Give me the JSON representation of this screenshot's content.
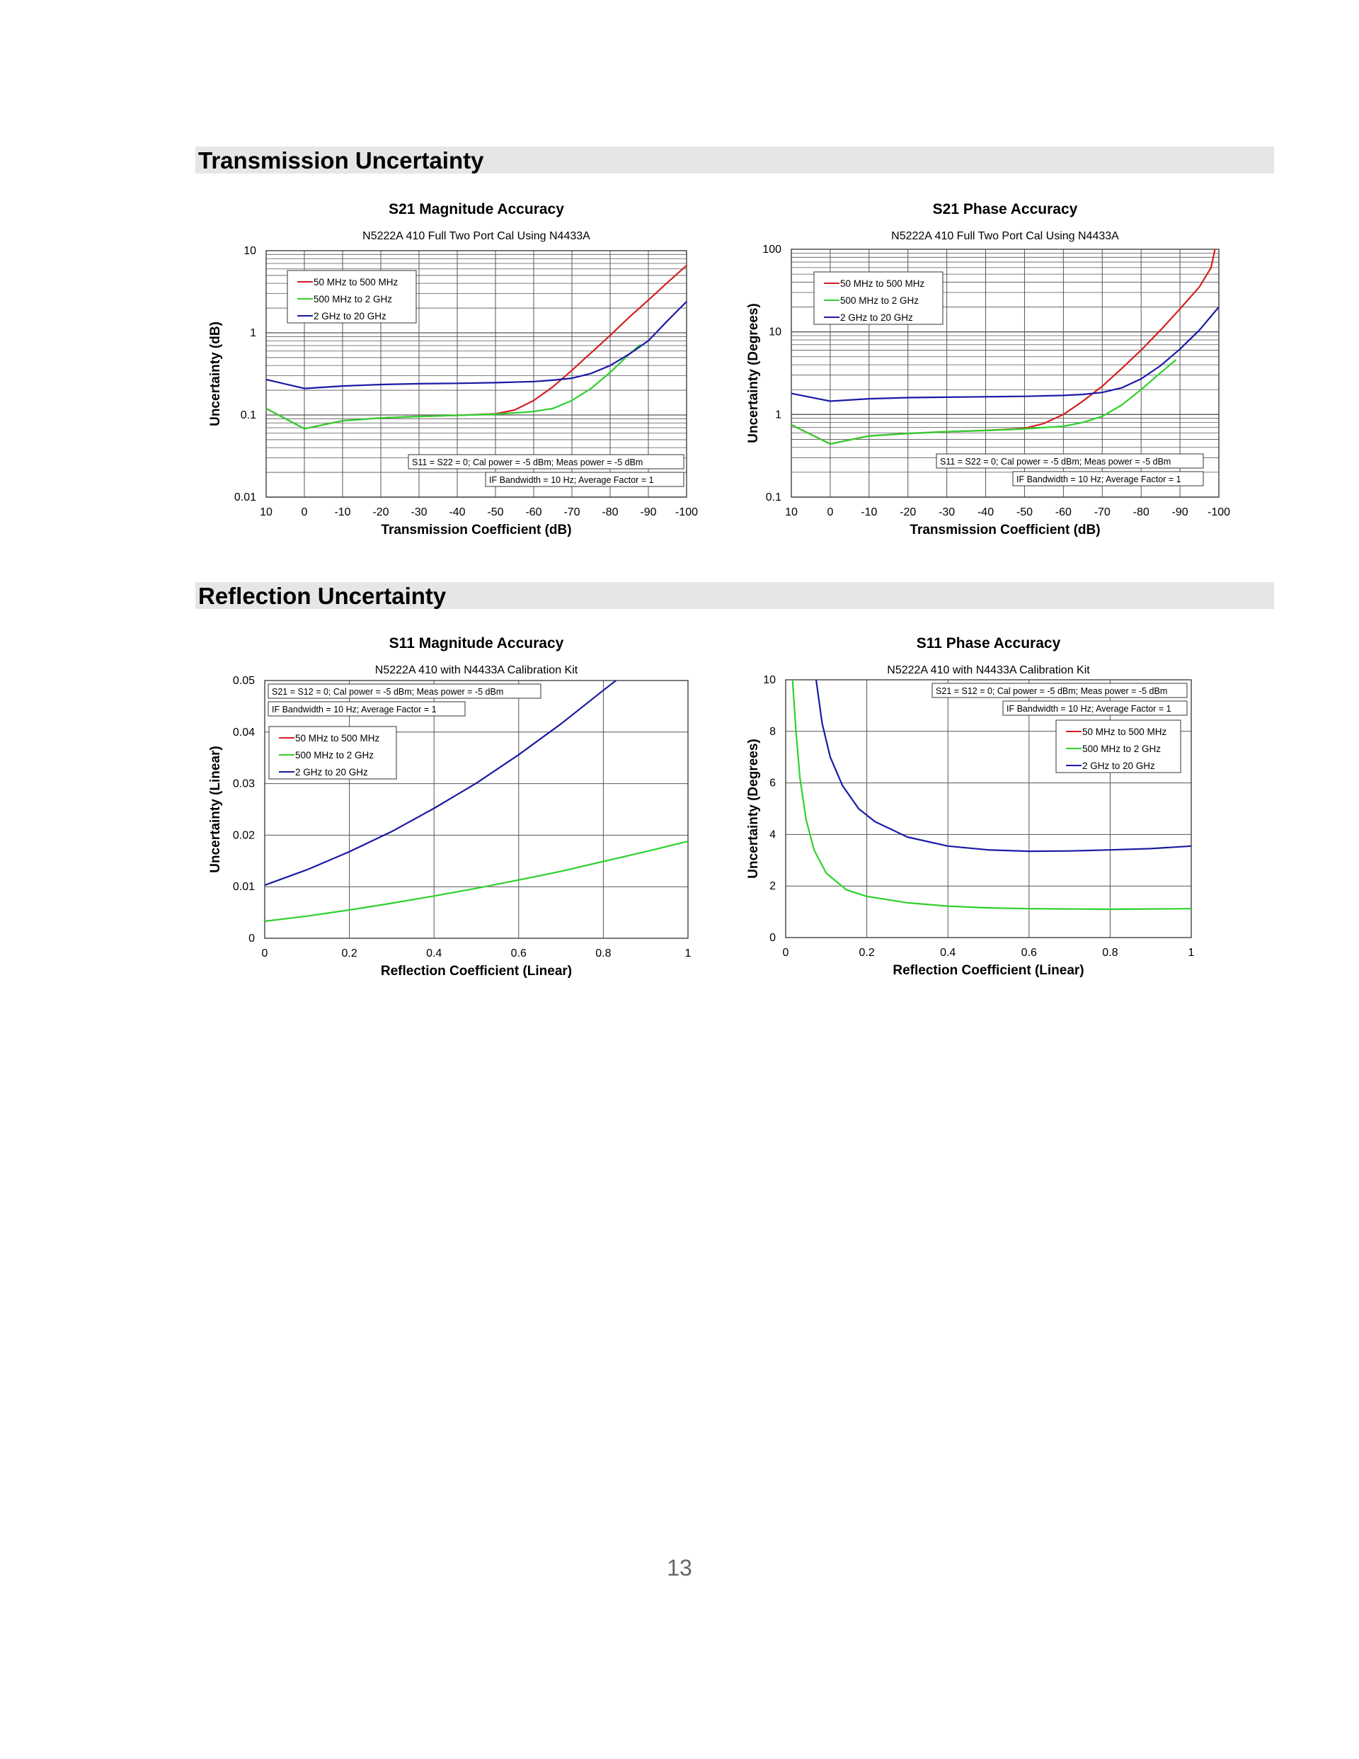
{
  "sections": {
    "transmission_title": "Transmission Uncertainty",
    "reflection_title": "Reflection Uncertainty"
  },
  "page_number": "13",
  "colors": {
    "red": "#d42020",
    "green": "#2ed12e",
    "blue": "#1a1aa6",
    "section_bar": "#e6e6e6"
  },
  "chart_data": [
    {
      "id": "s21-mag",
      "type": "line",
      "title": "S21 Magnitude Accuracy",
      "subtitle": "N5222A 410 Full Two Port Cal Using N4433A",
      "xlabel": "Transmission Coefficient (dB)",
      "ylabel": "Uncertainty (dB)",
      "xlim": [
        10,
        -100
      ],
      "ylim": [
        0.01,
        10
      ],
      "yscale": "log",
      "xticks": [
        10,
        0,
        -10,
        -20,
        -30,
        -40,
        -50,
        -60,
        -70,
        -80,
        -90,
        -100
      ],
      "yticks": [
        0.01,
        0.1,
        1,
        10
      ],
      "ytick_labels": [
        "0.01",
        "0.1",
        "1",
        "10"
      ],
      "grid": true,
      "legend": "top-left",
      "notes": [
        "S11 = S22 = 0; Cal power = -5 dBm; Meas power = -5 dBm",
        "IF Bandwidth = 10 Hz; Average Factor = 1"
      ],
      "series": [
        {
          "name": "50 MHz to 500 MHz",
          "color": "#d42020",
          "x": [
            10,
            0,
            -10,
            -20,
            -30,
            -40,
            -50,
            -55,
            -60,
            -65,
            -70,
            -75,
            -80,
            -85,
            -90,
            -95,
            -100
          ],
          "y": [
            0.12,
            0.068,
            0.085,
            0.092,
            0.096,
            0.099,
            0.103,
            0.115,
            0.15,
            0.22,
            0.35,
            0.57,
            0.93,
            1.55,
            2.5,
            4.1,
            6.6
          ]
        },
        {
          "name": "500 MHz to 2 GHz",
          "color": "#2ed12e",
          "x": [
            10,
            0,
            -10,
            -20,
            -30,
            -40,
            -50,
            -60,
            -65,
            -70,
            -75,
            -80,
            -85,
            -88
          ],
          "y": [
            0.12,
            0.068,
            0.085,
            0.092,
            0.096,
            0.099,
            0.102,
            0.11,
            0.12,
            0.15,
            0.21,
            0.33,
            0.55,
            0.72
          ]
        },
        {
          "name": "2 GHz to 20 GHz",
          "color": "#1a1aa6",
          "x": [
            10,
            0,
            -10,
            -20,
            -30,
            -40,
            -50,
            -60,
            -65,
            -70,
            -75,
            -80,
            -85,
            -90,
            -95,
            -100
          ],
          "y": [
            0.27,
            0.21,
            0.225,
            0.235,
            0.24,
            0.243,
            0.247,
            0.255,
            0.265,
            0.28,
            0.32,
            0.4,
            0.55,
            0.8,
            1.4,
            2.4
          ]
        }
      ]
    },
    {
      "id": "s21-phase",
      "type": "line",
      "title": "S21 Phase Accuracy",
      "subtitle": "N5222A 410 Full Two Port Cal Using N4433A",
      "xlabel": "Transmission Coefficient (dB)",
      "ylabel": "Uncertainty (Degrees)",
      "xlim": [
        10,
        -100
      ],
      "ylim": [
        0.1,
        100
      ],
      "yscale": "log",
      "xticks": [
        10,
        0,
        -10,
        -20,
        -30,
        -40,
        -50,
        -60,
        -70,
        -80,
        -90,
        -100
      ],
      "yticks": [
        0.1,
        1,
        10,
        100
      ],
      "ytick_labels": [
        "0.1",
        "1",
        "10",
        "100"
      ],
      "grid": true,
      "legend": "top-left",
      "notes": [
        "S11 = S22 = 0; Cal power = -5 dBm; Meas power = -5 dBm",
        "IF Bandwidth = 10 Hz; Average Factor = 1"
      ],
      "series": [
        {
          "name": "50 MHz to 500 MHz",
          "color": "#d42020",
          "x": [
            10,
            0,
            -10,
            -20,
            -30,
            -40,
            -50,
            -55,
            -60,
            -65,
            -70,
            -75,
            -80,
            -85,
            -90,
            -95,
            -98,
            -99
          ],
          "y": [
            0.75,
            0.44,
            0.55,
            0.59,
            0.62,
            0.64,
            0.68,
            0.78,
            1.0,
            1.45,
            2.2,
            3.6,
            6.0,
            10.5,
            19,
            35,
            60,
            100
          ]
        },
        {
          "name": "500 MHz to 2 GHz",
          "color": "#2ed12e",
          "x": [
            10,
            0,
            -10,
            -20,
            -30,
            -40,
            -50,
            -60,
            -65,
            -70,
            -75,
            -80,
            -85,
            -89
          ],
          "y": [
            0.75,
            0.44,
            0.55,
            0.59,
            0.62,
            0.64,
            0.67,
            0.72,
            0.8,
            0.95,
            1.3,
            2.0,
            3.2,
            4.6
          ]
        },
        {
          "name": "2 GHz to 20 GHz",
          "color": "#1a1aa6",
          "x": [
            10,
            0,
            -10,
            -20,
            -30,
            -40,
            -50,
            -60,
            -65,
            -70,
            -75,
            -80,
            -85,
            -90,
            -95,
            -100
          ],
          "y": [
            1.8,
            1.45,
            1.55,
            1.6,
            1.62,
            1.64,
            1.66,
            1.7,
            1.75,
            1.85,
            2.1,
            2.7,
            3.9,
            6.2,
            10.5,
            20
          ]
        }
      ]
    },
    {
      "id": "s11-mag",
      "type": "line",
      "title": "S11 Magnitude Accuracy",
      "subtitle": "N5222A 410 with N4433A Calibration Kit",
      "xlabel": "Reflection Coefficient (Linear)",
      "ylabel": "Uncertainty (Linear)",
      "xlim": [
        0,
        1
      ],
      "ylim": [
        0,
        0.05
      ],
      "yscale": "linear",
      "xticks": [
        0,
        0.2,
        0.4,
        0.6,
        0.8,
        1
      ],
      "xtick_labels": [
        "0",
        "0.2",
        "0.4",
        "0.6",
        "0.8",
        "1"
      ],
      "yticks": [
        0,
        0.01,
        0.02,
        0.03,
        0.04,
        0.05
      ],
      "ytick_labels": [
        "0",
        "0.01",
        "0.02",
        "0.03",
        "0.04",
        "0.05"
      ],
      "grid": true,
      "legend": "top-left",
      "notes": [
        "S21 = S12 = 0; Cal power = -5 dBm; Meas power = -5 dBm",
        "IF Bandwidth = 10 Hz; Average Factor = 1"
      ],
      "series": [
        {
          "name": "50 MHz to 500 MHz",
          "color": "#d42020",
          "x": [],
          "y": []
        },
        {
          "name": "500 MHz to 2 GHz",
          "color": "#2ed12e",
          "x": [
            0,
            0.1,
            0.2,
            0.3,
            0.4,
            0.5,
            0.6,
            0.7,
            0.8,
            0.9,
            1.0
          ],
          "y": [
            0.0033,
            0.0043,
            0.0055,
            0.0068,
            0.0082,
            0.0097,
            0.0113,
            0.013,
            0.0149,
            0.0168,
            0.0188
          ]
        },
        {
          "name": "2 GHz to 20 GHz",
          "color": "#1a1aa6",
          "x": [
            0,
            0.1,
            0.2,
            0.3,
            0.4,
            0.5,
            0.6,
            0.7,
            0.8,
            0.83
          ],
          "y": [
            0.0103,
            0.0133,
            0.0168,
            0.0207,
            0.0252,
            0.0301,
            0.0356,
            0.0416,
            0.0481,
            0.05
          ]
        }
      ]
    },
    {
      "id": "s11-phase",
      "type": "line",
      "title": "S11 Phase Accuracy",
      "subtitle": "N5222A 410 with N4433A Calibration Kit",
      "xlabel": "Reflection Coefficient (Linear)",
      "ylabel": "Uncertainty (Degrees)",
      "xlim": [
        0,
        1
      ],
      "ylim": [
        0,
        10
      ],
      "yscale": "linear",
      "xticks": [
        0,
        0.2,
        0.4,
        0.6,
        0.8,
        1
      ],
      "xtick_labels": [
        "0",
        "0.2",
        "0.4",
        "0.6",
        "0.8",
        "1"
      ],
      "yticks": [
        0,
        2,
        4,
        6,
        8,
        10
      ],
      "ytick_labels": [
        "0",
        "2",
        "4",
        "6",
        "8",
        "10"
      ],
      "grid": true,
      "legend": "top-right",
      "notes": [
        "S21 = S12 = 0; Cal power = -5 dBm; Meas power = -5 dBm",
        "IF Bandwidth = 10 Hz; Average Factor = 1"
      ],
      "series": [
        {
          "name": "50 MHz to 500 MHz",
          "color": "#d42020",
          "x": [],
          "y": []
        },
        {
          "name": "500 MHz to 2 GHz",
          "color": "#2ed12e",
          "x": [
            0.017,
            0.025,
            0.035,
            0.05,
            0.07,
            0.1,
            0.15,
            0.2,
            0.3,
            0.4,
            0.5,
            0.6,
            0.7,
            0.8,
            0.9,
            1.0
          ],
          "y": [
            10,
            8.1,
            6.2,
            4.6,
            3.4,
            2.5,
            1.85,
            1.6,
            1.35,
            1.22,
            1.15,
            1.12,
            1.11,
            1.1,
            1.11,
            1.12
          ]
        },
        {
          "name": "2 GHz to 20 GHz",
          "color": "#1a1aa6",
          "x": [
            0.075,
            0.09,
            0.11,
            0.14,
            0.18,
            0.22,
            0.3,
            0.4,
            0.5,
            0.6,
            0.7,
            0.8,
            0.9,
            1.0
          ],
          "y": [
            10,
            8.3,
            7.0,
            5.9,
            5.0,
            4.5,
            3.9,
            3.55,
            3.4,
            3.35,
            3.36,
            3.4,
            3.45,
            3.55
          ]
        }
      ]
    }
  ]
}
